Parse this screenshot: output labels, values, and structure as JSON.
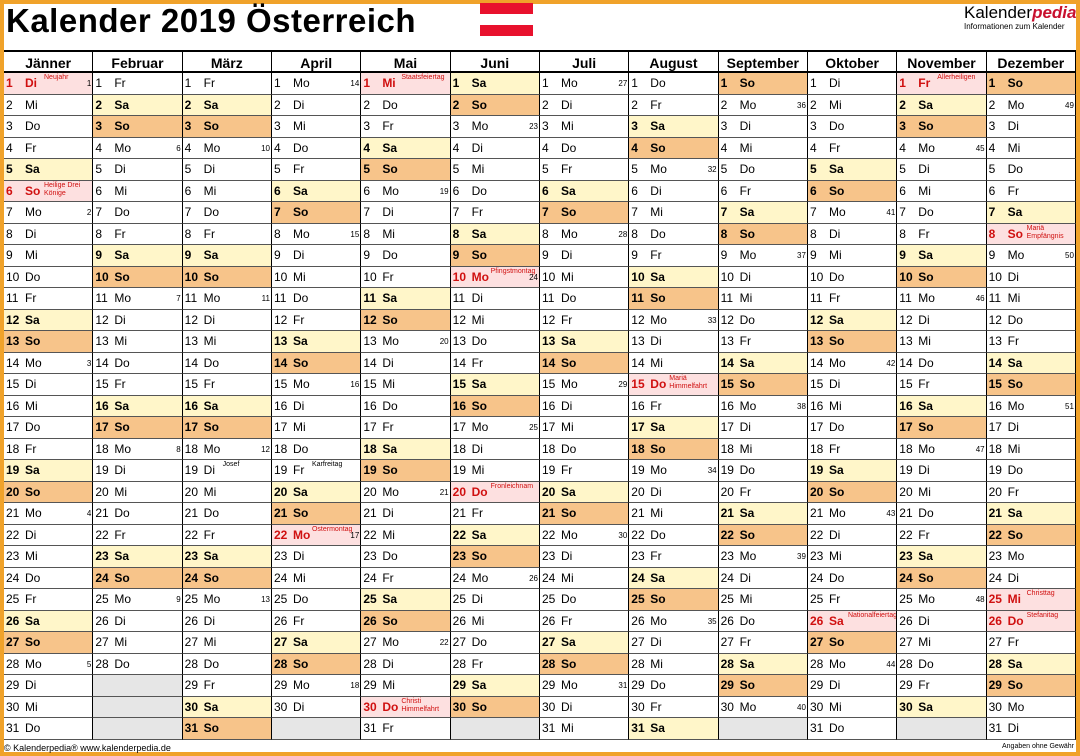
{
  "header": {
    "title": "Kalender 2019 Österreich",
    "brand_main": "Kalender",
    "brand_accent": "pedia",
    "brand_sub": "Informationen zum Kalender"
  },
  "flag": {
    "colors": [
      "#e8112d",
      "#ffffff",
      "#e8112d"
    ]
  },
  "colors": {
    "saturday": "#fff6c9",
    "sunday": "#f7c48a",
    "holiday": "#fde0e0",
    "holiday_text": "#d01010",
    "frame": "#f0a22a"
  },
  "months": [
    {
      "name": "Jänner",
      "days": [
        "Di",
        "Mi",
        "Do",
        "Fr",
        "Sa",
        "So",
        "Mo",
        "Di",
        "Mi",
        "Do",
        "Fr",
        "Sa",
        "So",
        "Mo",
        "Di",
        "Mi",
        "Do",
        "Fr",
        "Sa",
        "So",
        "Mo",
        "Di",
        "Mi",
        "Do",
        "Fr",
        "Sa",
        "So",
        "Mo",
        "Di",
        "Mi",
        "Do"
      ],
      "holidays": {
        "1": "Neujahr",
        "6": "Heilige Drei Könige"
      },
      "kw": {
        "1": "1",
        "7": "2",
        "14": "3",
        "21": "4",
        "28": "5"
      }
    },
    {
      "name": "Februar",
      "days": [
        "Fr",
        "Sa",
        "So",
        "Mo",
        "Di",
        "Mi",
        "Do",
        "Fr",
        "Sa",
        "So",
        "Mo",
        "Di",
        "Mi",
        "Do",
        "Fr",
        "Sa",
        "So",
        "Mo",
        "Di",
        "Mi",
        "Do",
        "Fr",
        "Sa",
        "So",
        "Mo",
        "Di",
        "Mi",
        "Do"
      ],
      "holidays": {},
      "kw": {
        "4": "6",
        "11": "7",
        "18": "8",
        "25": "9"
      }
    },
    {
      "name": "März",
      "days": [
        "Fr",
        "Sa",
        "So",
        "Mo",
        "Di",
        "Mi",
        "Do",
        "Fr",
        "Sa",
        "So",
        "Mo",
        "Di",
        "Mi",
        "Do",
        "Fr",
        "Sa",
        "So",
        "Mo",
        "Di",
        "Mi",
        "Do",
        "Fr",
        "Sa",
        "So",
        "Mo",
        "Di",
        "Mi",
        "Do",
        "Fr",
        "Sa",
        "So"
      ],
      "holidays": {},
      "notes": {
        "19": "Josef"
      },
      "kw": {
        "4": "10",
        "11": "11",
        "18": "12",
        "25": "13"
      }
    },
    {
      "name": "April",
      "days": [
        "Mo",
        "Di",
        "Mi",
        "Do",
        "Fr",
        "Sa",
        "So",
        "Mo",
        "Di",
        "Mi",
        "Do",
        "Fr",
        "Sa",
        "So",
        "Mo",
        "Di",
        "Mi",
        "Do",
        "Fr",
        "Sa",
        "So",
        "Mo",
        "Di",
        "Mi",
        "Do",
        "Fr",
        "Sa",
        "So",
        "Mo",
        "Di"
      ],
      "holidays": {
        "22": "Ostermontag"
      },
      "notes": {
        "19": "Karfreitag"
      },
      "kw": {
        "1": "14",
        "8": "15",
        "15": "16",
        "22": "17",
        "29": "18"
      }
    },
    {
      "name": "Mai",
      "days": [
        "Mi",
        "Do",
        "Fr",
        "Sa",
        "So",
        "Mo",
        "Di",
        "Mi",
        "Do",
        "Fr",
        "Sa",
        "So",
        "Mo",
        "Di",
        "Mi",
        "Do",
        "Fr",
        "Sa",
        "So",
        "Mo",
        "Di",
        "Mi",
        "Do",
        "Fr",
        "Sa",
        "So",
        "Mo",
        "Di",
        "Mi",
        "Do",
        "Fr"
      ],
      "holidays": {
        "1": "Staatsfeiertag",
        "30": "Christi Himmelfahrt"
      },
      "kw": {
        "6": "19",
        "13": "20",
        "20": "21",
        "27": "22"
      }
    },
    {
      "name": "Juni",
      "days": [
        "Sa",
        "So",
        "Mo",
        "Di",
        "Mi",
        "Do",
        "Fr",
        "Sa",
        "So",
        "Mo",
        "Di",
        "Mi",
        "Do",
        "Fr",
        "Sa",
        "So",
        "Mo",
        "Di",
        "Mi",
        "Do",
        "Fr",
        "Sa",
        "So",
        "Mo",
        "Di",
        "Mi",
        "Do",
        "Fr",
        "Sa",
        "So"
      ],
      "holidays": {
        "10": "Pfingstmontag",
        "20": "Fronleichnam"
      },
      "kw": {
        "3": "23",
        "10": "24",
        "17": "25",
        "24": "26"
      }
    },
    {
      "name": "Juli",
      "days": [
        "Mo",
        "Di",
        "Mi",
        "Do",
        "Fr",
        "Sa",
        "So",
        "Mo",
        "Di",
        "Mi",
        "Do",
        "Fr",
        "Sa",
        "So",
        "Mo",
        "Di",
        "Mi",
        "Do",
        "Fr",
        "Sa",
        "So",
        "Mo",
        "Di",
        "Mi",
        "Do",
        "Fr",
        "Sa",
        "So",
        "Mo",
        "Di",
        "Mi"
      ],
      "holidays": {},
      "kw": {
        "1": "27",
        "8": "28",
        "15": "29",
        "22": "30",
        "29": "31"
      }
    },
    {
      "name": "August",
      "days": [
        "Do",
        "Fr",
        "Sa",
        "So",
        "Mo",
        "Di",
        "Mi",
        "Do",
        "Fr",
        "Sa",
        "So",
        "Mo",
        "Di",
        "Mi",
        "Do",
        "Fr",
        "Sa",
        "So",
        "Mo",
        "Di",
        "Mi",
        "Do",
        "Fr",
        "Sa",
        "So",
        "Mo",
        "Di",
        "Mi",
        "Do",
        "Fr",
        "Sa"
      ],
      "holidays": {
        "15": "Mariä Himmelfahrt"
      },
      "kw": {
        "5": "32",
        "12": "33",
        "19": "34",
        "26": "35"
      }
    },
    {
      "name": "September",
      "days": [
        "So",
        "Mo",
        "Di",
        "Mi",
        "Do",
        "Fr",
        "Sa",
        "So",
        "Mo",
        "Di",
        "Mi",
        "Do",
        "Fr",
        "Sa",
        "So",
        "Mo",
        "Di",
        "Mi",
        "Do",
        "Fr",
        "Sa",
        "So",
        "Mo",
        "Di",
        "Mi",
        "Do",
        "Fr",
        "Sa",
        "So",
        "Mo"
      ],
      "holidays": {},
      "kw": {
        "2": "36",
        "9": "37",
        "16": "38",
        "23": "39",
        "30": "40"
      }
    },
    {
      "name": "Oktober",
      "days": [
        "Di",
        "Mi",
        "Do",
        "Fr",
        "Sa",
        "So",
        "Mo",
        "Di",
        "Mi",
        "Do",
        "Fr",
        "Sa",
        "So",
        "Mo",
        "Di",
        "Mi",
        "Do",
        "Fr",
        "Sa",
        "So",
        "Mo",
        "Di",
        "Mi",
        "Do",
        "Fr",
        "Sa",
        "So",
        "Mo",
        "Di",
        "Mi",
        "Do"
      ],
      "holidays": {
        "26": "Nationalfeiertag"
      },
      "kw": {
        "7": "41",
        "14": "42",
        "21": "43",
        "28": "44"
      }
    },
    {
      "name": "November",
      "days": [
        "Fr",
        "Sa",
        "So",
        "Mo",
        "Di",
        "Mi",
        "Do",
        "Fr",
        "Sa",
        "So",
        "Mo",
        "Di",
        "Mi",
        "Do",
        "Fr",
        "Sa",
        "So",
        "Mo",
        "Di",
        "Mi",
        "Do",
        "Fr",
        "Sa",
        "So",
        "Mo",
        "Di",
        "Mi",
        "Do",
        "Fr",
        "Sa"
      ],
      "holidays": {
        "1": "Allerheiligen"
      },
      "kw": {
        "4": "45",
        "11": "46",
        "18": "47",
        "25": "48"
      }
    },
    {
      "name": "Dezember",
      "days": [
        "So",
        "Mo",
        "Di",
        "Mi",
        "Do",
        "Fr",
        "Sa",
        "So",
        "Mo",
        "Di",
        "Mi",
        "Do",
        "Fr",
        "Sa",
        "So",
        "Mo",
        "Di",
        "Mi",
        "Do",
        "Fr",
        "Sa",
        "So",
        "Mo",
        "Di",
        "Mi",
        "Do",
        "Fr",
        "Sa",
        "So",
        "Mo",
        "Di"
      ],
      "holidays": {
        "8": "Mariä Empfängnis",
        "25": "Christtag",
        "26": "Stefanitag"
      },
      "kw": {
        "2": "49",
        "9": "50",
        "16": "51"
      }
    }
  ],
  "footer": {
    "left": "© Kalenderpedia®   www.kalenderpedia.de",
    "right": "Angaben ohne Gewähr"
  }
}
